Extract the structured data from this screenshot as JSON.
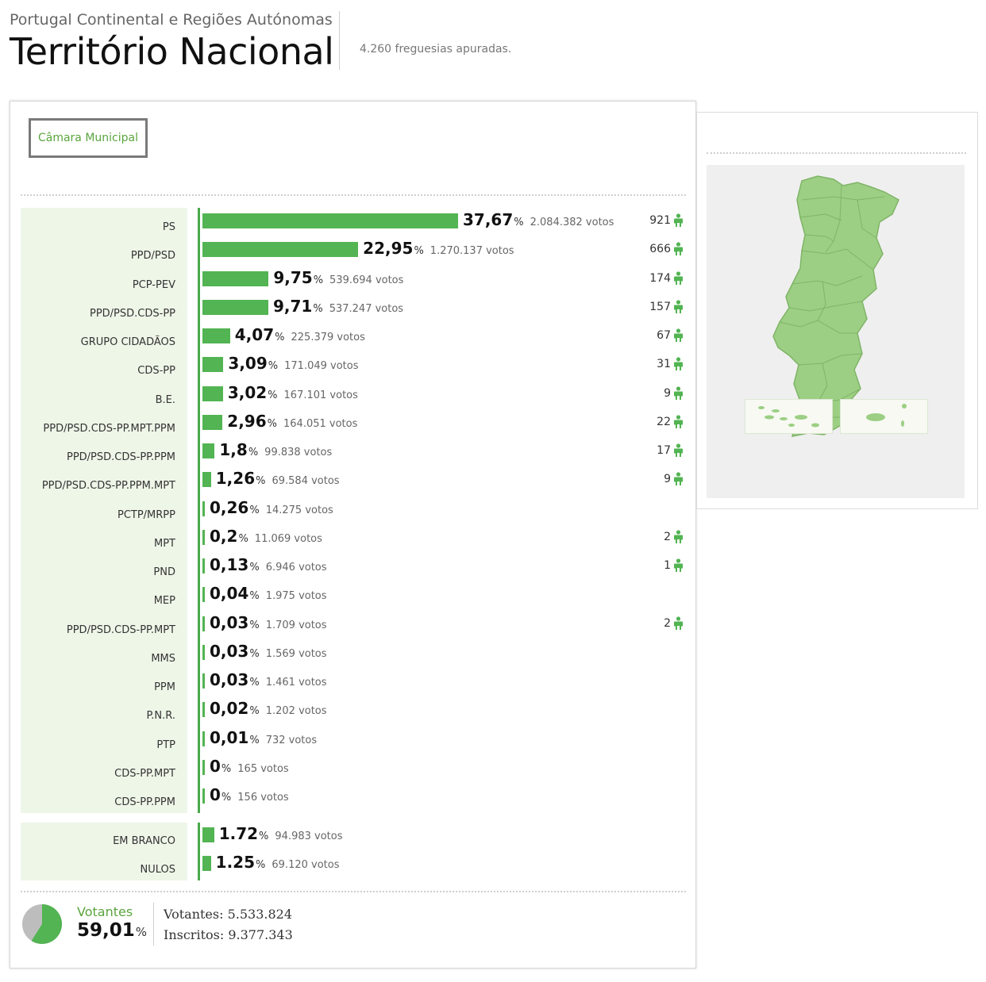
{
  "header": {
    "subtitle": "Portugal Continental e Regiões Autónomas",
    "title": "Território Nacional",
    "freguesias": "4.260 freguesias apuradas."
  },
  "tab": {
    "label": "Câmara Municipal"
  },
  "parties": [
    {
      "name": "PS",
      "pct": "37,67",
      "votes": "2.084.382 votos",
      "seats": "921",
      "value": 37.67
    },
    {
      "name": "PPD/PSD",
      "pct": "22,95",
      "votes": "1.270.137 votos",
      "seats": "666",
      "value": 22.95
    },
    {
      "name": "PCP-PEV",
      "pct": "9,75",
      "votes": "539.694 votos",
      "seats": "174",
      "value": 9.75
    },
    {
      "name": "PPD/PSD.CDS-PP",
      "pct": "9,71",
      "votes": "537.247 votos",
      "seats": "157",
      "value": 9.71
    },
    {
      "name": "GRUPO CIDADÃOS",
      "pct": "4,07",
      "votes": "225.379 votos",
      "seats": "67",
      "value": 4.07
    },
    {
      "name": "CDS-PP",
      "pct": "3,09",
      "votes": "171.049 votos",
      "seats": "31",
      "value": 3.09
    },
    {
      "name": "B.E.",
      "pct": "3,02",
      "votes": "167.101 votos",
      "seats": "9",
      "value": 3.02
    },
    {
      "name": "PPD/PSD.CDS-PP.MPT.PPM",
      "pct": "2,96",
      "votes": "164.051 votos",
      "seats": "22",
      "value": 2.96
    },
    {
      "name": "PPD/PSD.CDS-PP.PPM",
      "pct": "1,8",
      "votes": "99.838 votos",
      "seats": "17",
      "value": 1.8
    },
    {
      "name": "PPD/PSD.CDS-PP.PPM.MPT",
      "pct": "1,26",
      "votes": "69.584 votos",
      "seats": "9",
      "value": 1.26
    },
    {
      "name": "PCTP/MRPP",
      "pct": "0,26",
      "votes": "14.275 votos",
      "seats": "",
      "value": 0.26
    },
    {
      "name": "MPT",
      "pct": "0,2",
      "votes": "11.069 votos",
      "seats": "2",
      "value": 0.2
    },
    {
      "name": "PND",
      "pct": "0,13",
      "votes": "6.946 votos",
      "seats": "1",
      "value": 0.13
    },
    {
      "name": "MEP",
      "pct": "0,04",
      "votes": "1.975 votos",
      "seats": "",
      "value": 0.04
    },
    {
      "name": "PPD/PSD.CDS-PP.MPT",
      "pct": "0,03",
      "votes": "1.709 votos",
      "seats": "2",
      "value": 0.03
    },
    {
      "name": "MMS",
      "pct": "0,03",
      "votes": "1.569 votos",
      "seats": "",
      "value": 0.03
    },
    {
      "name": "PPM",
      "pct": "0,03",
      "votes": "1.461 votos",
      "seats": "",
      "value": 0.03
    },
    {
      "name": "P.N.R.",
      "pct": "0,02",
      "votes": "1.202 votos",
      "seats": "",
      "value": 0.02
    },
    {
      "name": "PTP",
      "pct": "0,01",
      "votes": "732 votos",
      "seats": "",
      "value": 0.01
    },
    {
      "name": "CDS-PP.MPT",
      "pct": "0",
      "votes": "165 votos",
      "seats": "",
      "value": 0
    },
    {
      "name": "CDS-PP.PPM",
      "pct": "0",
      "votes": "156 votos",
      "seats": "",
      "value": 0
    }
  ],
  "others": [
    {
      "name": "EM BRANCO",
      "pct": "1.72",
      "votes": "94.983 votos",
      "value": 1.72
    },
    {
      "name": "NULOS",
      "pct": "1.25",
      "votes": "69.120 votos",
      "value": 1.25
    }
  ],
  "footer": {
    "votantes_label": "Votantes",
    "votantes_pct": "59,01",
    "votantes_value": 59.01,
    "votantes_line": "Votantes: 5.533.824",
    "inscritos_line": "Inscritos: 9.377.343"
  },
  "pct_sign": "%",
  "colors": {
    "accent": "#52b452",
    "map_fill": "#9ccf84",
    "label_bg": "#eef6e8"
  },
  "icons": {
    "seat": "person-icon",
    "tab": "tab-button"
  }
}
